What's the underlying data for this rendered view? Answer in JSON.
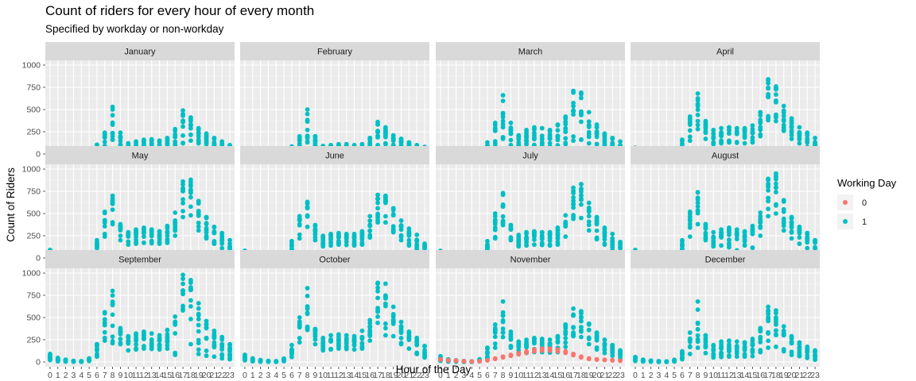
{
  "chart_data": {
    "type": "scatter",
    "title": "Count of riders for every hour of every month",
    "subtitle": "Specified by workday or non-workday",
    "xlabel": "Hour of the Day",
    "ylabel": "Count of Riders",
    "x_ticks": [
      "0",
      "1",
      "2",
      "3",
      "4",
      "5",
      "6",
      "7",
      "8",
      "9",
      "10",
      "11",
      "12",
      "13",
      "14",
      "15",
      "16",
      "17",
      "18",
      "19",
      "20",
      "21",
      "22",
      "23"
    ],
    "y_ticks": [
      "0",
      "250",
      "500",
      "750",
      "1000"
    ],
    "ylim": [
      0,
      1000
    ],
    "grid": true,
    "legend": {
      "title": "Working Day",
      "position": "right",
      "entries": [
        {
          "label": "0",
          "color": "#F8766D"
        },
        {
          "label": "1",
          "color": "#00BFC4"
        }
      ]
    },
    "facets": [
      {
        "name": "January",
        "workday_typical": [
          40,
          15,
          8,
          4,
          3,
          12,
          70,
          190,
          330,
          190,
          85,
          90,
          110,
          115,
          105,
          120,
          190,
          360,
          320,
          230,
          170,
          130,
          95,
          55
        ],
        "workday_upper": [
          50,
          25,
          15,
          8,
          6,
          22,
          105,
          240,
          530,
          240,
          120,
          140,
          160,
          165,
          150,
          180,
          280,
          490,
          410,
          290,
          230,
          180,
          140,
          100
        ],
        "workday_lower": [
          10,
          5,
          3,
          1,
          1,
          5,
          30,
          90,
          160,
          100,
          45,
          50,
          60,
          60,
          60,
          60,
          100,
          120,
          150,
          120,
          80,
          65,
          45,
          25
        ]
      },
      {
        "name": "February",
        "workday_typical": [
          30,
          12,
          6,
          3,
          2,
          10,
          55,
          150,
          270,
          150,
          60,
          70,
          80,
          80,
          75,
          85,
          130,
          260,
          230,
          170,
          130,
          100,
          75,
          45
        ],
        "workday_upper": [
          40,
          20,
          12,
          6,
          4,
          18,
          85,
          200,
          500,
          200,
          90,
          100,
          110,
          110,
          100,
          110,
          180,
          360,
          300,
          210,
          170,
          130,
          100,
          80
        ],
        "workday_lower": [
          8,
          4,
          2,
          1,
          1,
          4,
          25,
          70,
          130,
          80,
          35,
          40,
          45,
          45,
          45,
          45,
          70,
          100,
          110,
          90,
          65,
          50,
          35,
          20
        ]
      },
      {
        "name": "March",
        "workday_typical": [
          40,
          15,
          8,
          4,
          3,
          14,
          90,
          260,
          460,
          230,
          130,
          160,
          180,
          175,
          170,
          200,
          290,
          480,
          450,
          310,
          220,
          160,
          110,
          70
        ],
        "workday_upper": [
          60,
          30,
          15,
          8,
          6,
          25,
          130,
          350,
          660,
          350,
          210,
          270,
          300,
          290,
          270,
          330,
          420,
          710,
          690,
          470,
          330,
          230,
          180,
          140
        ],
        "workday_lower": [
          10,
          5,
          3,
          1,
          1,
          5,
          30,
          90,
          170,
          100,
          50,
          55,
          60,
          60,
          60,
          65,
          110,
          150,
          160,
          120,
          80,
          65,
          45,
          25
        ]
      },
      {
        "name": "April",
        "workday_typical": [
          50,
          20,
          10,
          5,
          4,
          18,
          110,
          330,
          560,
          300,
          190,
          210,
          230,
          225,
          215,
          240,
          350,
          640,
          600,
          430,
          310,
          230,
          170,
          100
        ],
        "workday_upper": [
          70,
          35,
          20,
          10,
          8,
          30,
          160,
          420,
          680,
          370,
          270,
          290,
          300,
          290,
          290,
          320,
          470,
          840,
          760,
          540,
          400,
          300,
          240,
          180
        ],
        "workday_lower": [
          15,
          6,
          3,
          1,
          1,
          8,
          45,
          150,
          280,
          170,
          110,
          120,
          130,
          125,
          120,
          130,
          200,
          380,
          370,
          260,
          170,
          120,
          80,
          50
        ]
      },
      {
        "name": "May",
        "workday_typical": [
          60,
          25,
          12,
          6,
          5,
          25,
          140,
          420,
          620,
          330,
          240,
          260,
          280,
          270,
          255,
          280,
          400,
          750,
          760,
          510,
          380,
          280,
          200,
          120
        ],
        "workday_upper": [
          90,
          45,
          25,
          12,
          9,
          40,
          200,
          520,
          700,
          380,
          290,
          320,
          340,
          320,
          300,
          360,
          510,
          860,
          880,
          640,
          460,
          350,
          280,
          200
        ],
        "workday_lower": [
          20,
          8,
          4,
          2,
          1,
          10,
          60,
          240,
          380,
          200,
          150,
          160,
          170,
          165,
          160,
          170,
          250,
          460,
          480,
          310,
          220,
          160,
          110,
          60
        ]
      },
      {
        "name": "June",
        "workday_typical": [
          55,
          22,
          10,
          6,
          5,
          22,
          130,
          380,
          560,
          320,
          200,
          220,
          240,
          230,
          220,
          250,
          360,
          620,
          620,
          480,
          360,
          270,
          190,
          110
        ],
        "workday_upper": [
          80,
          40,
          22,
          12,
          9,
          38,
          190,
          470,
          630,
          370,
          250,
          270,
          280,
          270,
          270,
          300,
          470,
          710,
          700,
          560,
          420,
          330,
          260,
          160
        ],
        "workday_lower": [
          18,
          7,
          3,
          2,
          1,
          9,
          55,
          220,
          350,
          200,
          130,
          140,
          150,
          145,
          140,
          150,
          230,
          400,
          400,
          290,
          200,
          140,
          90,
          20
        ]
      },
      {
        "name": "July",
        "workday_typical": [
          55,
          22,
          10,
          6,
          5,
          22,
          130,
          400,
          600,
          320,
          200,
          220,
          240,
          235,
          225,
          255,
          380,
          680,
          700,
          520,
          380,
          280,
          190,
          110
        ],
        "workday_upper": [
          80,
          40,
          22,
          12,
          9,
          38,
          190,
          500,
          730,
          370,
          260,
          290,
          300,
          290,
          290,
          340,
          480,
          790,
          830,
          620,
          460,
          340,
          270,
          180
        ],
        "workday_lower": [
          18,
          7,
          3,
          2,
          1,
          9,
          55,
          220,
          370,
          200,
          130,
          140,
          150,
          145,
          140,
          150,
          240,
          440,
          450,
          310,
          210,
          150,
          90,
          50
        ]
      },
      {
        "name": "August",
        "workday_typical": [
          60,
          25,
          12,
          6,
          5,
          25,
          140,
          420,
          620,
          330,
          220,
          240,
          260,
          250,
          240,
          270,
          400,
          760,
          790,
          520,
          380,
          280,
          200,
          120
        ],
        "workday_upper": [
          90,
          45,
          25,
          12,
          9,
          40,
          200,
          520,
          740,
          380,
          290,
          320,
          340,
          320,
          300,
          360,
          510,
          890,
          950,
          650,
          460,
          350,
          280,
          200
        ],
        "workday_lower": [
          20,
          8,
          4,
          2,
          1,
          10,
          60,
          240,
          380,
          200,
          130,
          140,
          50,
          50,
          140,
          60,
          250,
          470,
          500,
          310,
          220,
          160,
          110,
          60
        ]
      },
      {
        "name": "September",
        "workday_typical": [
          60,
          25,
          12,
          6,
          5,
          25,
          140,
          440,
          640,
          330,
          220,
          240,
          260,
          250,
          240,
          270,
          420,
          800,
          810,
          540,
          380,
          280,
          200,
          120
        ],
        "workday_upper": [
          90,
          45,
          25,
          12,
          9,
          40,
          200,
          560,
          800,
          380,
          290,
          320,
          340,
          320,
          300,
          360,
          510,
          980,
          920,
          660,
          460,
          350,
          280,
          200
        ],
        "workday_lower": [
          20,
          8,
          4,
          2,
          1,
          10,
          60,
          240,
          210,
          200,
          130,
          140,
          150,
          145,
          140,
          150,
          80,
          580,
          200,
          90,
          70,
          60,
          40,
          30
        ]
      },
      {
        "name": "October",
        "workday_typical": [
          55,
          22,
          10,
          6,
          5,
          22,
          130,
          390,
          620,
          320,
          210,
          230,
          250,
          240,
          230,
          260,
          390,
          720,
          720,
          510,
          370,
          270,
          190,
          110
        ],
        "workday_upper": [
          80,
          40,
          22,
          12,
          9,
          38,
          190,
          500,
          830,
          370,
          270,
          300,
          310,
          300,
          290,
          350,
          470,
          890,
          880,
          620,
          450,
          340,
          270,
          180
        ],
        "workday_lower": [
          18,
          7,
          3,
          2,
          1,
          9,
          55,
          220,
          360,
          200,
          130,
          140,
          150,
          145,
          140,
          150,
          240,
          440,
          300,
          290,
          200,
          150,
          90,
          50
        ]
      },
      {
        "name": "November",
        "workday_typical": [
          45,
          18,
          9,
          5,
          4,
          18,
          110,
          330,
          520,
          280,
          170,
          190,
          210,
          200,
          195,
          220,
          330,
          520,
          500,
          360,
          270,
          200,
          140,
          85
        ],
        "workday_upper": [
          65,
          30,
          18,
          10,
          7,
          30,
          160,
          420,
          680,
          340,
          230,
          250,
          270,
          260,
          250,
          290,
          420,
          600,
          570,
          430,
          330,
          250,
          190,
          130
        ],
        "workday_lower": [
          12,
          5,
          3,
          1,
          1,
          6,
          40,
          160,
          280,
          160,
          90,
          100,
          110,
          110,
          105,
          110,
          170,
          290,
          280,
          200,
          140,
          100,
          70,
          35
        ],
        "nonworkday": [
          30,
          20,
          15,
          8,
          5,
          8,
          20,
          40,
          60,
          80,
          100,
          120,
          140,
          150,
          150,
          140,
          120,
          90,
          60,
          40,
          30,
          25,
          20,
          15
        ]
      },
      {
        "name": "December",
        "workday_typical": [
          40,
          15,
          8,
          4,
          3,
          14,
          85,
          250,
          440,
          220,
          130,
          160,
          175,
          170,
          165,
          190,
          280,
          460,
          420,
          300,
          210,
          160,
          110,
          70
        ],
        "workday_upper": [
          55,
          25,
          15,
          8,
          6,
          24,
          120,
          330,
          680,
          300,
          190,
          230,
          240,
          230,
          220,
          260,
          380,
          620,
          580,
          400,
          290,
          220,
          170,
          130
        ],
        "workday_lower": [
          10,
          5,
          3,
          1,
          1,
          5,
          30,
          90,
          160,
          100,
          50,
          55,
          60,
          60,
          60,
          65,
          110,
          160,
          170,
          120,
          80,
          65,
          45,
          25
        ]
      }
    ]
  }
}
